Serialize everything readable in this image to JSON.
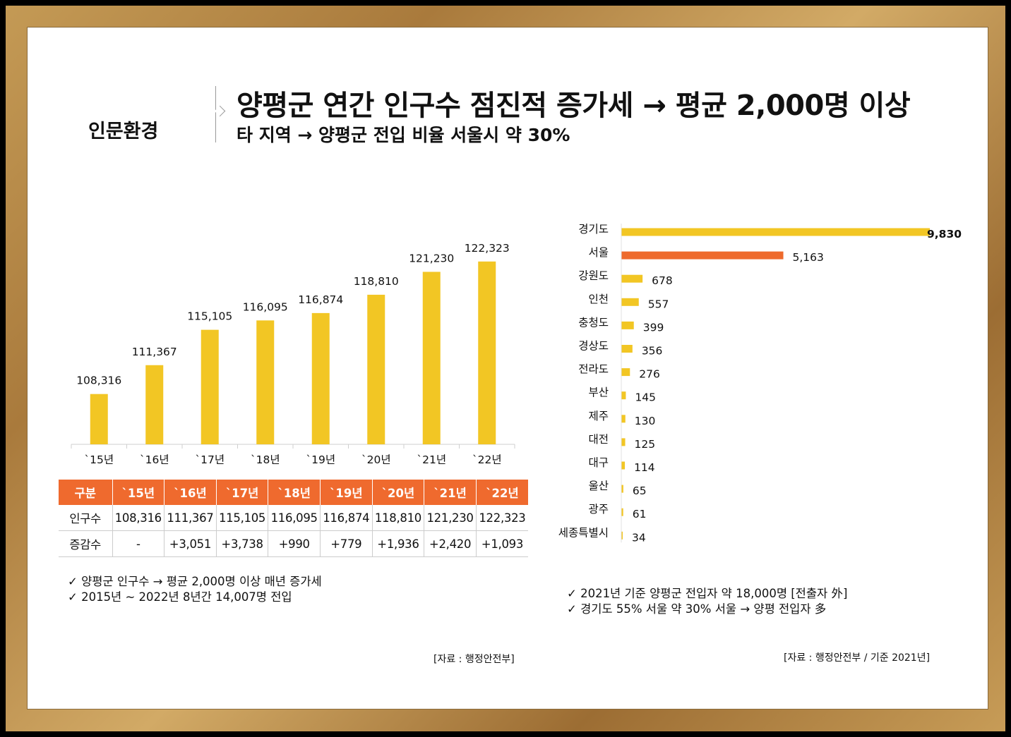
{
  "header": {
    "section": "인문환경",
    "title": "양평군 연간 인구수 점진적 증가세 → 평균 2,000명 이상",
    "subtitle": "타 지역 → 양평군 전입 비율 서울시 약 30%"
  },
  "chart_data": [
    {
      "type": "bar",
      "categories": [
        "`15년",
        "`16년",
        "`17년",
        "`18년",
        "`19년",
        "`20년",
        "`21년",
        "`22년"
      ],
      "values": [
        108316,
        111367,
        115105,
        116095,
        116874,
        118810,
        121230,
        122323
      ],
      "labels": [
        "108,316",
        "111,367",
        "115,105",
        "116,095",
        "116,874",
        "118,810",
        "121,230",
        "122,323"
      ],
      "color": "#f2c624",
      "ylim": [
        103000,
        123500
      ]
    },
    {
      "type": "bar",
      "orientation": "horizontal",
      "categories": [
        "경기도",
        "서울",
        "강원도",
        "인천",
        "충청도",
        "경상도",
        "전라도",
        "부산",
        "제주",
        "대전",
        "대구",
        "울산",
        "광주",
        "세종특별시"
      ],
      "values": [
        9830,
        5163,
        678,
        557,
        399,
        356,
        276,
        145,
        130,
        125,
        114,
        65,
        61,
        34
      ],
      "labels": [
        "9,830",
        "5,163",
        "678",
        "557",
        "399",
        "356",
        "276",
        "145",
        "130",
        "125",
        "114",
        "65",
        "61",
        "34"
      ],
      "colors": {
        "default": "#f2c624",
        "highlight": "#ee6a2c"
      },
      "highlight_index": 1,
      "xlim": [
        0,
        9830
      ]
    }
  ],
  "table": {
    "headers": [
      "구분",
      "`15년",
      "`16년",
      "`17년",
      "`18년",
      "`19년",
      "`20년",
      "`21년",
      "`22년"
    ],
    "rows": [
      [
        "인구수",
        "108,316",
        "111,367",
        "115,105",
        "116,095",
        "116,874",
        "118,810",
        "121,230",
        "122,323"
      ],
      [
        "증감수",
        "-",
        "+3,051",
        "+3,738",
        "+990",
        "+779",
        "+1,936",
        "+2,420",
        "+1,093"
      ]
    ]
  },
  "notes_left": [
    "✓  양평군 인구수 → 평균 2,000명 이상 매년 증가세",
    "✓  2015년 ~ 2022년 8년간 14,007명 전입"
  ],
  "notes_right": [
    "✓  2021년 기준 양평군 전입자 약 18,000명 [전출자 外]",
    "✓  경기도 55% 서울 약 30% 서울 → 양평 전입자 多"
  ],
  "source_left": "[자료 : 행정안전부]",
  "source_right": "[자료 : 행정안전부 / 기준 2021년]"
}
